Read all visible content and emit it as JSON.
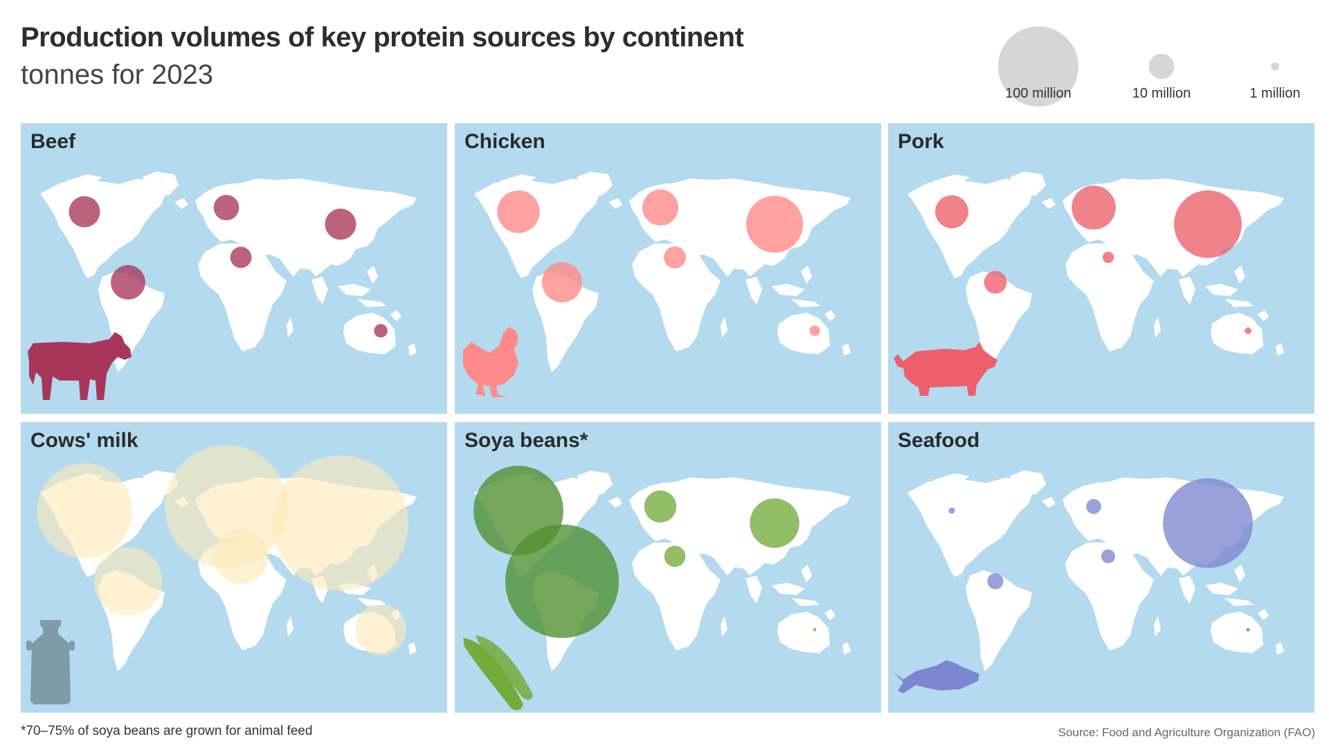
{
  "header": {
    "title": "Production volumes of key protein sources by continent",
    "subtitle": "tonnes for 2023"
  },
  "size_legend": [
    {
      "label": "100 million",
      "value": 100000000
    },
    {
      "label": "10 million",
      "value": 10000000
    },
    {
      "label": "1 million",
      "value": 1000000
    }
  ],
  "footnote": "*70–75% of soya beans are grown for animal feed",
  "source": "Source: Food and Agriculture Organization (FAO)",
  "colors": {
    "ocean": "#b3daef",
    "land": "#ffffff",
    "legend_bubble": "#c8c8c8",
    "beef": "#a8365a",
    "chicken": "#ff8a8a",
    "pork": "#ec5f6b",
    "milk": "#fde9b6",
    "milk_icon": "#7f9aa8",
    "soya": "#72ac3b",
    "soya_dark": "#4e8f2e",
    "seafood": "#7d86d0",
    "seafood_oceania": "#4a9a8a"
  },
  "chart_data": [
    {
      "type": "bubble-map",
      "title": "Beef",
      "icon": "cow-icon",
      "color_key": "beef",
      "categories": [
        "North America",
        "South America",
        "Europe",
        "Africa",
        "Asia",
        "Oceania"
      ],
      "values": [
        15000000,
        18500000,
        10000000,
        7000000,
        15000000,
        2800000
      ]
    },
    {
      "type": "bubble-map",
      "title": "Chicken",
      "icon": "chicken-icon",
      "color_key": "chicken",
      "categories": [
        "North America",
        "South America",
        "Europe",
        "Africa",
        "Asia",
        "Oceania"
      ],
      "values": [
        28000000,
        25000000,
        20000000,
        7500000,
        50000000,
        1700000
      ]
    },
    {
      "type": "bubble-map",
      "title": "Pork",
      "icon": "pig-icon",
      "color_key": "pork",
      "categories": [
        "North America",
        "South America",
        "Europe",
        "Africa",
        "Asia",
        "Oceania"
      ],
      "values": [
        17000000,
        8000000,
        30000000,
        2000000,
        71000000,
        700000
      ]
    },
    {
      "type": "bubble-map",
      "title": "Cows' milk",
      "icon": "milk-can-icon",
      "color_key": "milk",
      "categories": [
        "North America",
        "South America",
        "Europe",
        "Africa",
        "Asia",
        "Oceania"
      ],
      "values": [
        140000000,
        73000000,
        235000000,
        47000000,
        285000000,
        40000000
      ]
    },
    {
      "type": "bubble-map",
      "title": "Soya beans*",
      "icon": "soybean-pod-icon",
      "color_key": "soya",
      "categories": [
        "North America",
        "South America",
        "Europe",
        "Africa",
        "Asia",
        "Oceania"
      ],
      "values": [
        125000000,
        200000000,
        16000000,
        7000000,
        38000000,
        50000
      ]
    },
    {
      "type": "bubble-map",
      "title": "Seafood",
      "icon": "fish-icon",
      "color_key": "seafood",
      "categories": [
        "North America",
        "South America",
        "Europe",
        "Africa",
        "Asia",
        "Oceania"
      ],
      "values": [
        600000,
        4000000,
        3500000,
        3000000,
        125000000,
        200000
      ]
    }
  ]
}
